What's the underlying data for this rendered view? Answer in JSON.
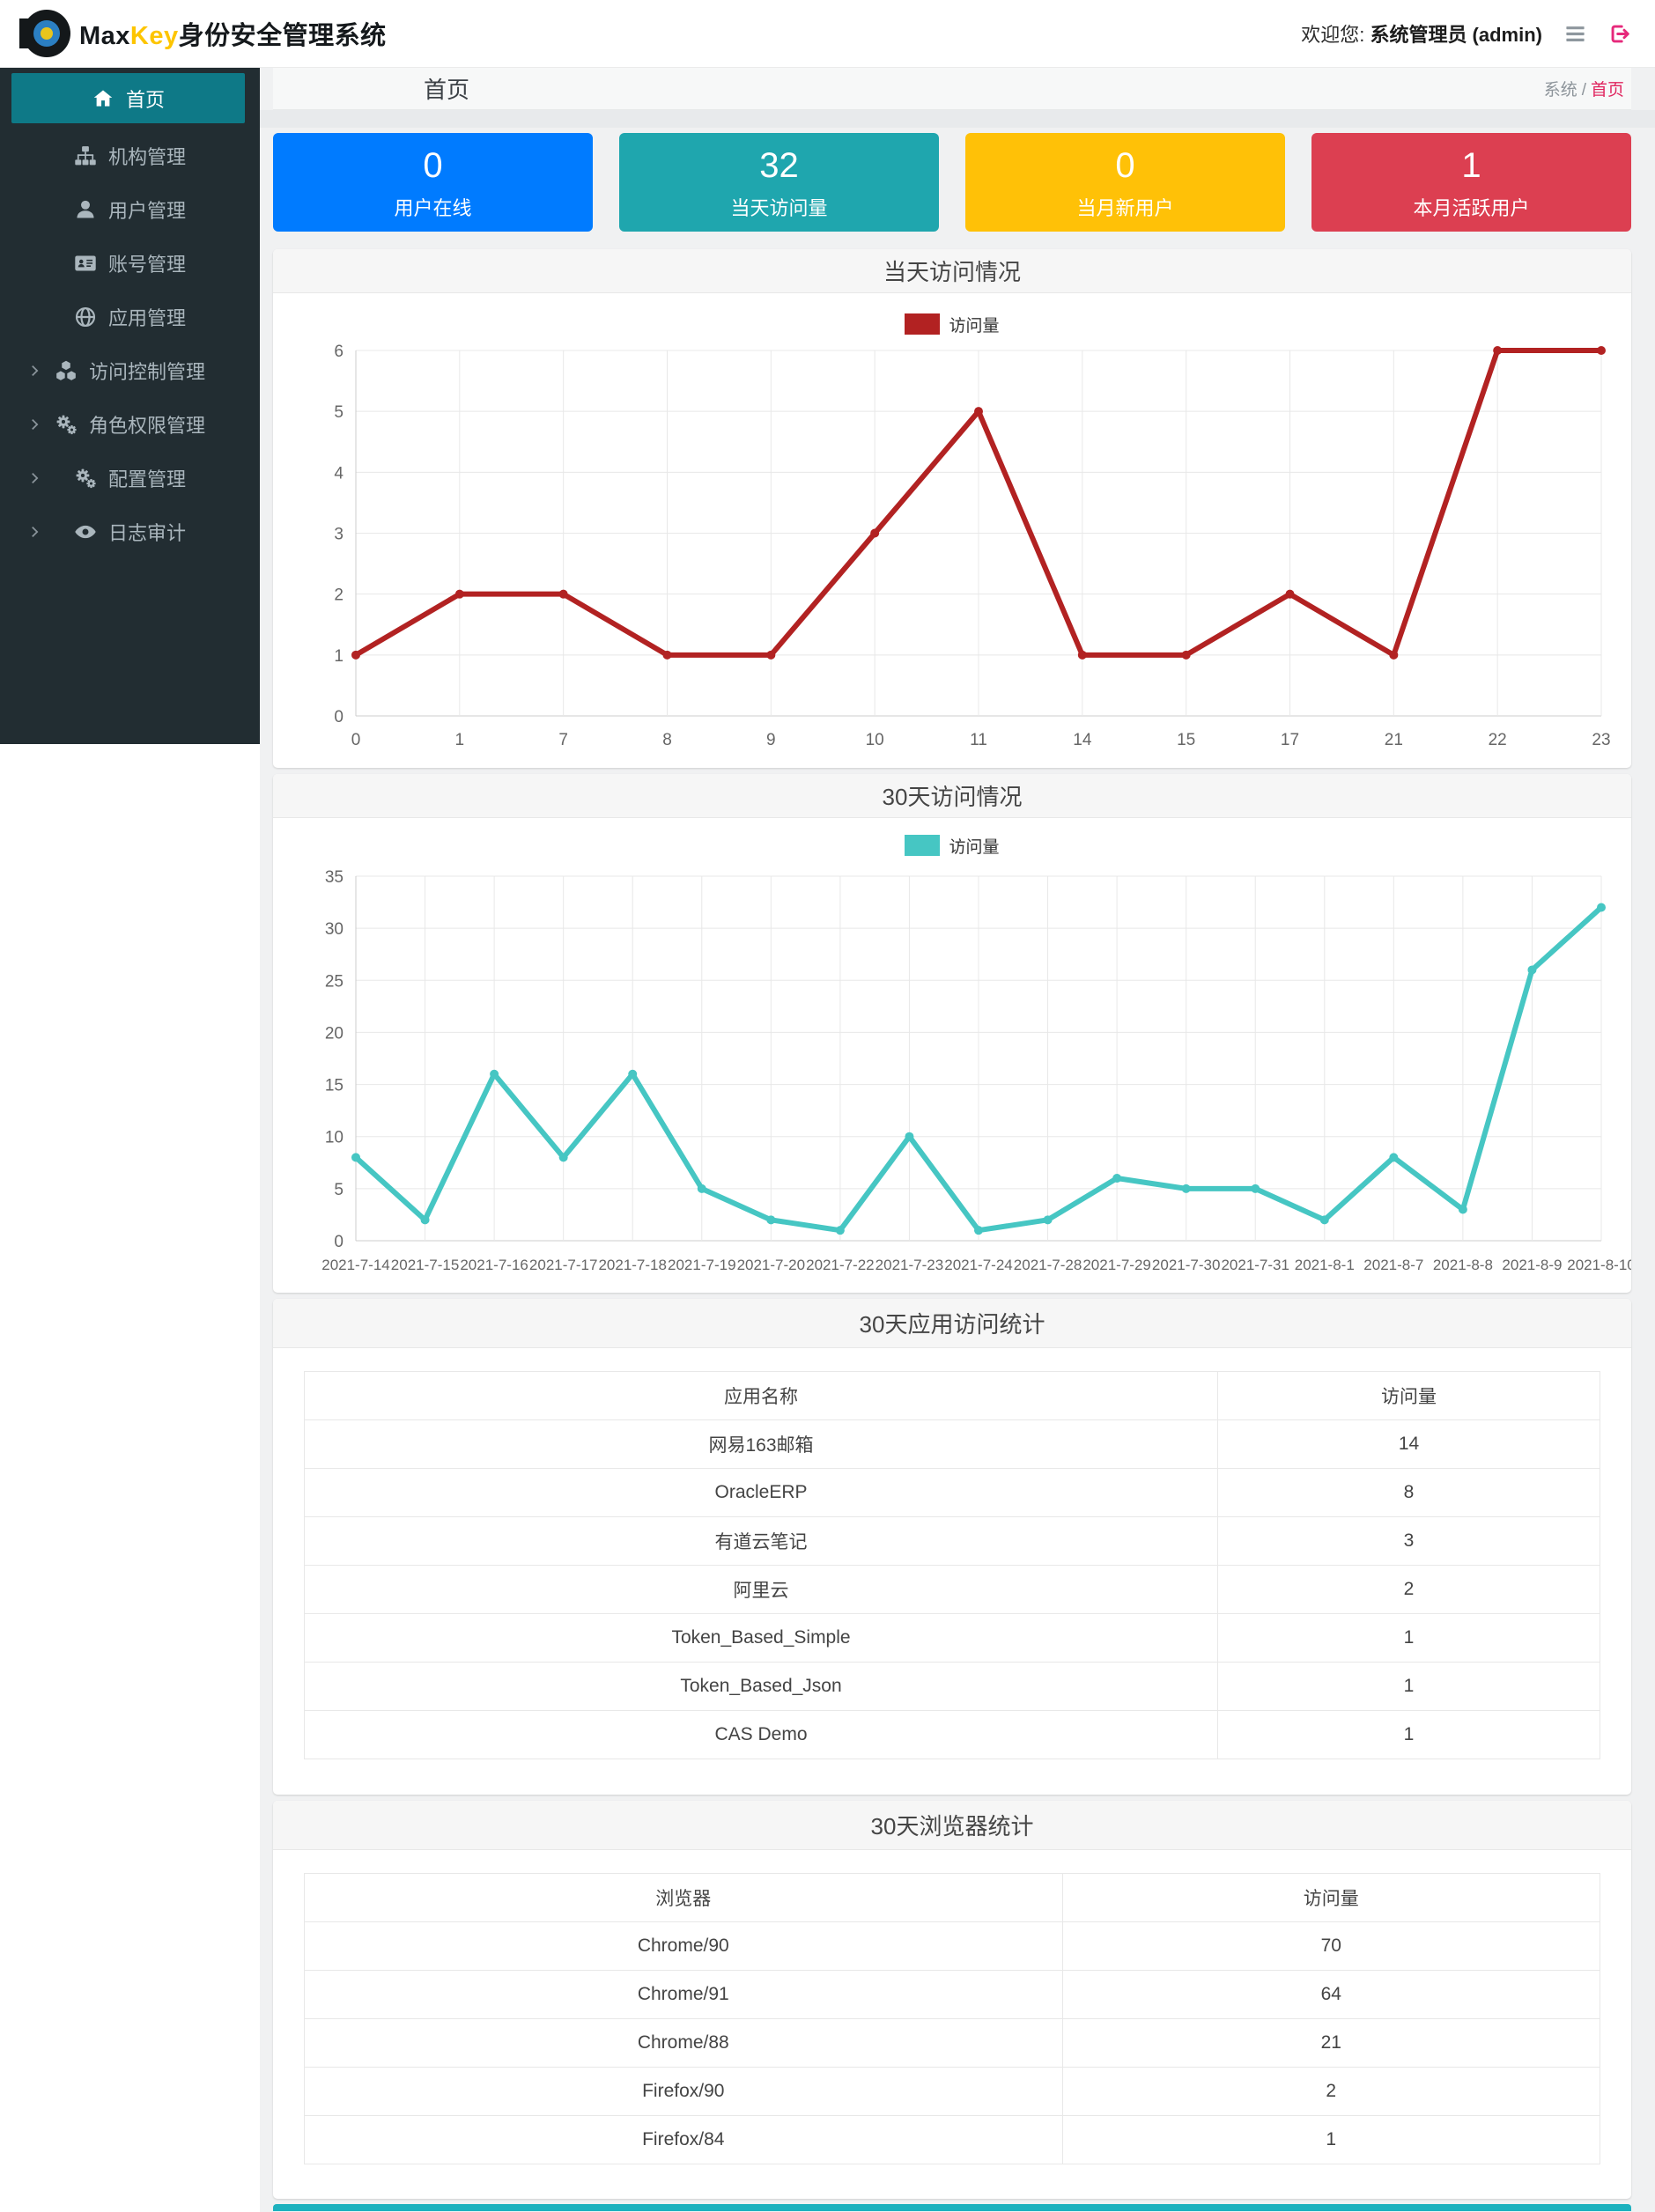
{
  "header": {
    "brand_max": "Max",
    "brand_key": "Key",
    "brand_suffix": "身份安全管理系统",
    "welcome_prefix": "欢迎您:",
    "welcome_user": "系统管理员 (admin)"
  },
  "sidebar": {
    "items": [
      {
        "key": "home",
        "label": "首页",
        "icon": "home-icon",
        "active": true,
        "expandable": false
      },
      {
        "key": "org",
        "label": "机构管理",
        "icon": "org-icon",
        "active": false,
        "expandable": false
      },
      {
        "key": "user",
        "label": "用户管理",
        "icon": "user-icon",
        "active": false,
        "expandable": false
      },
      {
        "key": "account",
        "label": "账号管理",
        "icon": "idcard-icon",
        "active": false,
        "expandable": false
      },
      {
        "key": "app",
        "label": "应用管理",
        "icon": "globe-icon",
        "active": false,
        "expandable": false
      },
      {
        "key": "access",
        "label": "访问控制管理",
        "icon": "cubes-icon",
        "active": false,
        "expandable": true
      },
      {
        "key": "role",
        "label": "角色权限管理",
        "icon": "gears-icon",
        "active": false,
        "expandable": true
      },
      {
        "key": "config",
        "label": "配置管理",
        "icon": "gears-icon",
        "active": false,
        "expandable": true
      },
      {
        "key": "audit",
        "label": "日志审计",
        "icon": "eye-icon",
        "active": false,
        "expandable": true
      }
    ]
  },
  "breadcrumb": {
    "page_title": "首页",
    "root": "系统",
    "separator": "/",
    "current": "首页"
  },
  "stat_cards": [
    {
      "value": "0",
      "label": "用户在线",
      "color": "#007bff"
    },
    {
      "value": "32",
      "label": "当天访问量",
      "color": "#1fa6ae"
    },
    {
      "value": "0",
      "label": "当月新用户",
      "color": "#ffc107"
    },
    {
      "value": "1",
      "label": "本月活跃用户",
      "color": "#dc3f51"
    }
  ],
  "chart_data": [
    {
      "type": "line",
      "title": "当天访问情况",
      "legend": "访问量",
      "legend_position": "top",
      "color": "#b22222",
      "categories": [
        "0",
        "1",
        "7",
        "8",
        "9",
        "10",
        "11",
        "14",
        "15",
        "17",
        "21",
        "22",
        "23"
      ],
      "values": [
        1,
        2,
        2,
        1,
        1,
        3,
        5,
        1,
        1,
        2,
        1,
        6,
        6
      ],
      "xlabel": "",
      "ylabel": "",
      "ylim": [
        0,
        6
      ],
      "ystep": 1,
      "grid": true
    },
    {
      "type": "line",
      "title": "30天访问情况",
      "legend": "访问量",
      "legend_position": "top",
      "color": "#46c6c3",
      "categories": [
        "2021-7-14",
        "2021-7-15",
        "2021-7-16",
        "2021-7-17",
        "2021-7-18",
        "2021-7-19",
        "2021-7-20",
        "2021-7-22",
        "2021-7-23",
        "2021-7-24",
        "2021-7-28",
        "2021-7-29",
        "2021-7-30",
        "2021-7-31",
        "2021-8-1",
        "2021-8-7",
        "2021-8-8",
        "2021-8-9",
        "2021-8-10"
      ],
      "values": [
        8,
        2,
        16,
        8,
        16,
        5,
        2,
        1,
        10,
        1,
        2,
        6,
        5,
        5,
        2,
        8,
        3,
        26,
        32
      ],
      "xlabel": "",
      "ylabel": "",
      "ylim": [
        0,
        35
      ],
      "ystep": 5,
      "grid": true
    }
  ],
  "tables": [
    {
      "title": "30天应用访问统计",
      "columns": [
        "应用名称",
        "访问量"
      ],
      "rows": [
        [
          "网易163邮箱",
          "14"
        ],
        [
          "OracleERP",
          "8"
        ],
        [
          "有道云笔记",
          "3"
        ],
        [
          "阿里云",
          "2"
        ],
        [
          "Token_Based_Simple",
          "1"
        ],
        [
          "Token_Based_Json",
          "1"
        ],
        [
          "CAS Demo",
          "1"
        ]
      ]
    },
    {
      "title": "30天浏览器统计",
      "columns": [
        "浏览器",
        "访问量"
      ],
      "rows": [
        [
          "Chrome/90",
          "70"
        ],
        [
          "Chrome/91",
          "64"
        ],
        [
          "Chrome/88",
          "21"
        ],
        [
          "Firefox/90",
          "2"
        ],
        [
          "Firefox/84",
          "1"
        ]
      ]
    }
  ],
  "colors": {
    "sidebar_bg": "#222d32",
    "sidebar_active": "#0e7987",
    "logout_icon": "#e6297b",
    "breadcrumb_current": "#e0245e",
    "footer_bar": "#1db1be"
  }
}
